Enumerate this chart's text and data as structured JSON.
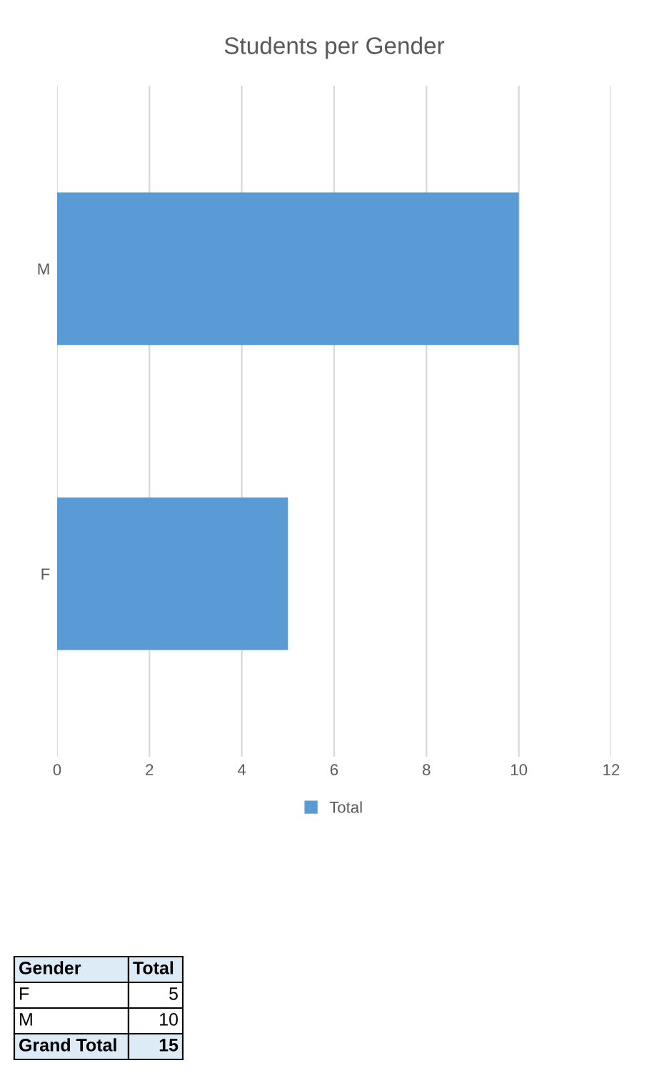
{
  "chart_data": {
    "type": "bar",
    "title": "Students per Gender",
    "orientation": "horizontal",
    "categories": [
      "M",
      "F"
    ],
    "series": [
      {
        "name": "Total",
        "color": "#5b9bd5",
        "values": [
          10,
          5
        ]
      }
    ],
    "xlim": [
      0,
      12
    ],
    "xticks": [
      0,
      2,
      4,
      6,
      8,
      10,
      12
    ],
    "grid": "x",
    "legend": "bottom",
    "annotations": [
      "Gender",
      "Total",
      "F",
      "5",
      "M",
      "10",
      "Grand Total",
      "15"
    ]
  }
}
